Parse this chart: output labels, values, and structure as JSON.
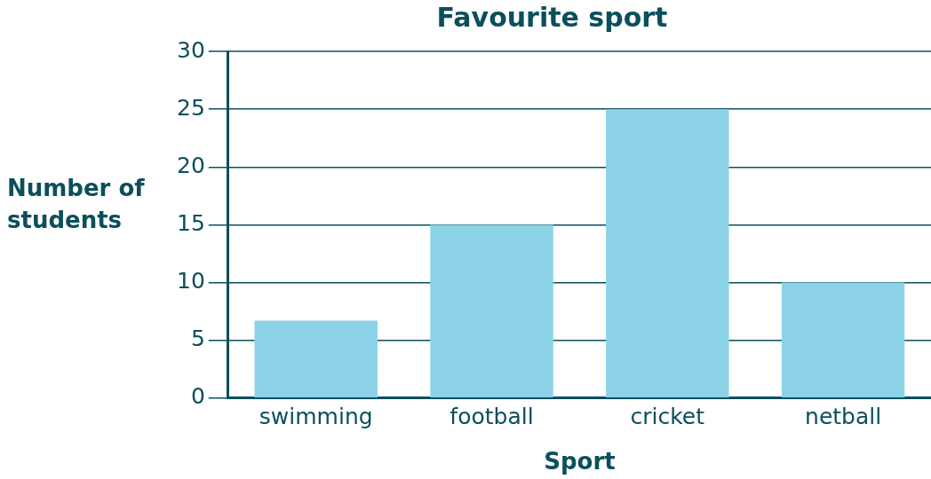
{
  "chart_data": {
    "type": "bar",
    "title": "Favourite sport",
    "xlabel": "Sport",
    "ylabel": "Number of students",
    "categories": [
      "swimming",
      "football",
      "cricket",
      "netball"
    ],
    "values": [
      6.7,
      15,
      25,
      10
    ],
    "color": "#8cd3e8",
    "ylim": [
      0,
      30
    ],
    "yticks": [
      0,
      5,
      10,
      15,
      20,
      25,
      30
    ],
    "grid": "y"
  }
}
